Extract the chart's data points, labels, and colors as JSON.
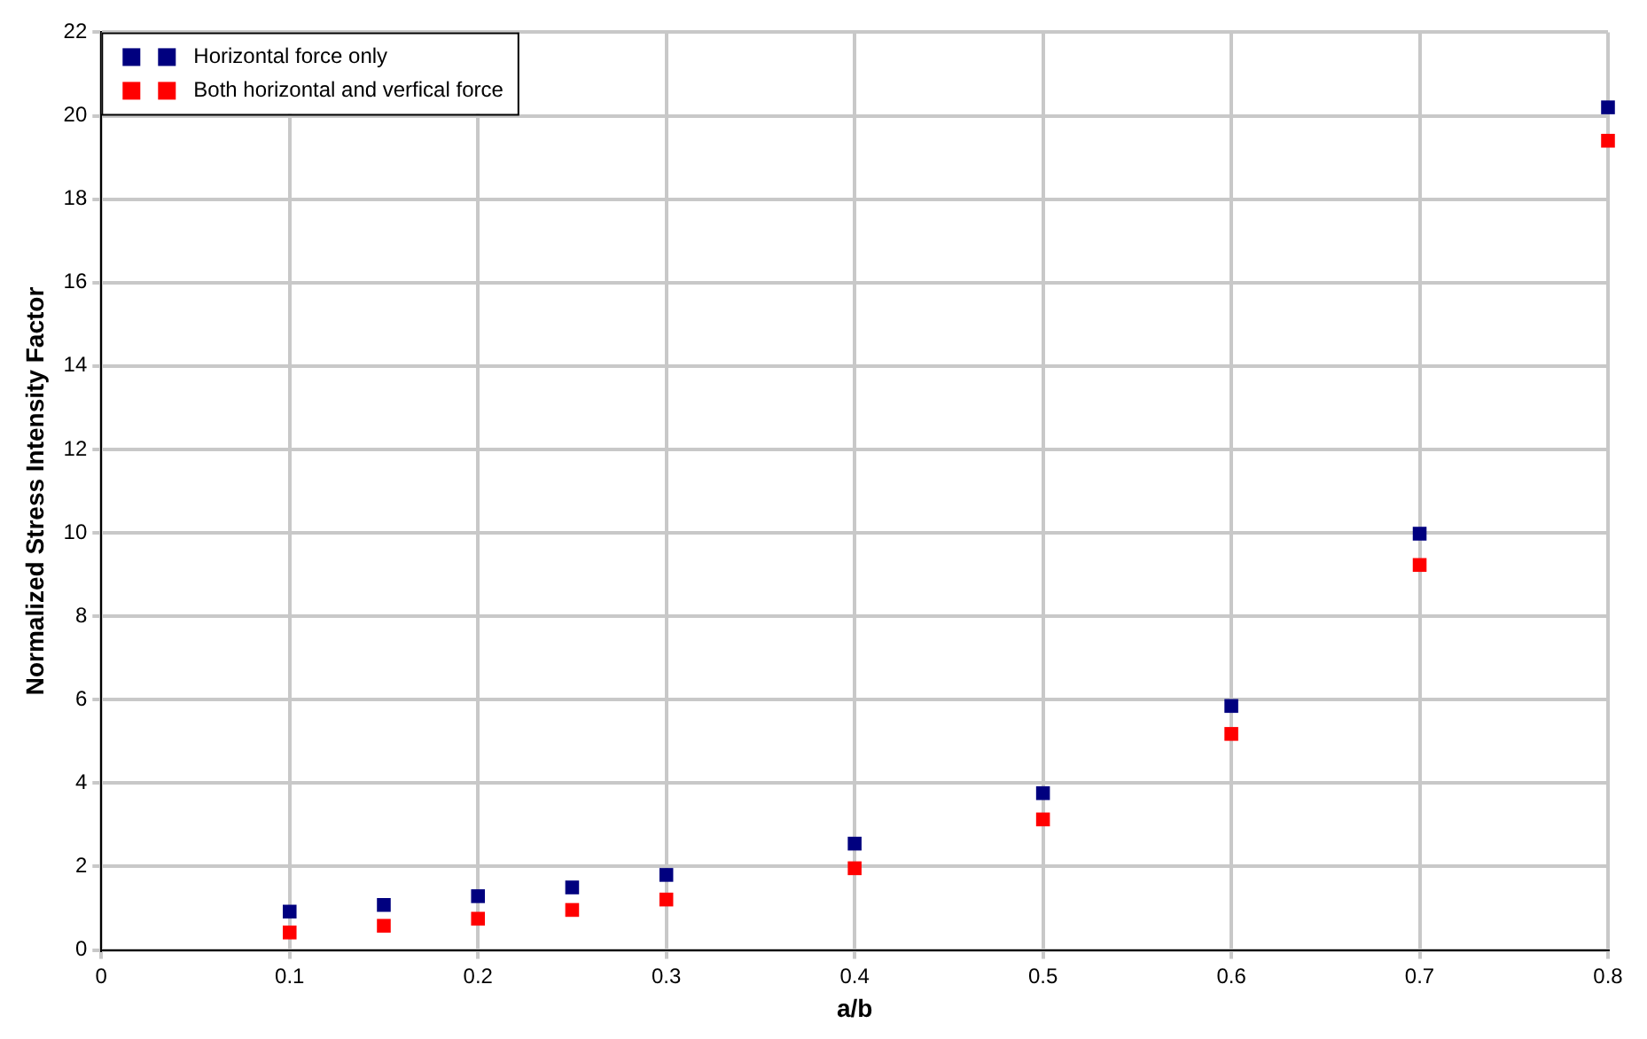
{
  "chart_data": {
    "type": "scatter",
    "xlabel": "a/b",
    "ylabel": "Normalized Stress Intensity Factor",
    "x": [
      0.1,
      0.15,
      0.2,
      0.25,
      0.3,
      0.4,
      0.5,
      0.6,
      0.7,
      0.8
    ],
    "series": [
      {
        "name": "Horizontal force only",
        "color": "#00007f",
        "values": [
          0.92,
          1.08,
          1.29,
          1.5,
          1.8,
          2.55,
          3.76,
          5.85,
          9.98,
          20.2
        ]
      },
      {
        "name": "Both horizontal and verfical force",
        "color": "#ff0000",
        "values": [
          0.42,
          0.58,
          0.75,
          0.96,
          1.21,
          1.96,
          3.13,
          5.18,
          9.23,
          19.4
        ]
      }
    ],
    "xlim": [
      0,
      0.8
    ],
    "xticks": [
      0,
      0.1,
      0.2,
      0.3,
      0.4,
      0.5,
      0.6,
      0.7,
      0.8
    ],
    "ylim": [
      0,
      22
    ],
    "yticks": [
      0,
      2,
      4,
      6,
      8,
      10,
      12,
      14,
      16,
      18,
      20,
      22
    ],
    "grid": true,
    "legend": "top left",
    "marker": "square"
  }
}
